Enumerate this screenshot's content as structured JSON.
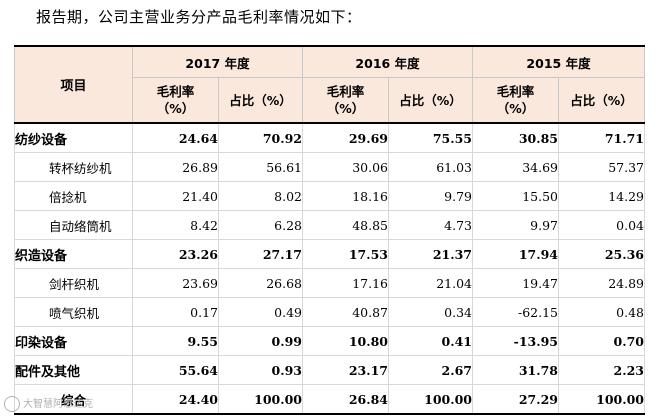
{
  "intro": "报告期，公司主营业务分产品毛利率情况如下：",
  "header": {
    "item": "项目",
    "years": [
      "2017 年度",
      "2016 年度",
      "2015 年度"
    ],
    "margin_label": [
      "毛利率",
      "（%）"
    ],
    "share_label": "占比（%）"
  },
  "rows": [
    {
      "name": "纺纱设备",
      "level": "category",
      "values": [
        "24.64",
        "70.92",
        "29.69",
        "75.55",
        "30.85",
        "71.71"
      ]
    },
    {
      "name": "转杯纺纱机",
      "level": "sub",
      "values": [
        "26.89",
        "56.61",
        "30.06",
        "61.03",
        "34.69",
        "57.37"
      ]
    },
    {
      "name": "倍捻机",
      "level": "sub",
      "values": [
        "21.40",
        "8.02",
        "18.16",
        "9.79",
        "15.50",
        "14.29"
      ]
    },
    {
      "name": "自动络筒机",
      "level": "sub",
      "values": [
        "8.42",
        "6.28",
        "48.85",
        "4.73",
        "9.97",
        "0.04"
      ]
    },
    {
      "name": "织造设备",
      "level": "category",
      "values": [
        "23.26",
        "27.17",
        "17.53",
        "21.37",
        "17.94",
        "25.36"
      ]
    },
    {
      "name": "剑杆织机",
      "level": "sub",
      "values": [
        "23.69",
        "26.68",
        "17.16",
        "21.04",
        "19.47",
        "24.89"
      ]
    },
    {
      "name": "喷气织机",
      "level": "sub",
      "values": [
        "0.17",
        "0.49",
        "40.87",
        "0.34",
        "-62.15",
        "0.48"
      ]
    },
    {
      "name": "印染设备",
      "level": "category",
      "values": [
        "9.55",
        "0.99",
        "10.80",
        "0.41",
        "-13.95",
        "0.70"
      ]
    },
    {
      "name": "配件及其他",
      "level": "category",
      "values": [
        "55.64",
        "0.93",
        "23.17",
        "2.67",
        "31.78",
        "2.23"
      ]
    },
    {
      "name": "综合",
      "level": "total",
      "values": [
        "24.40",
        "100.00",
        "26.84",
        "100.00",
        "27.29",
        "100.00"
      ]
    }
  ],
  "watermark": "大智慧阿思达克"
}
